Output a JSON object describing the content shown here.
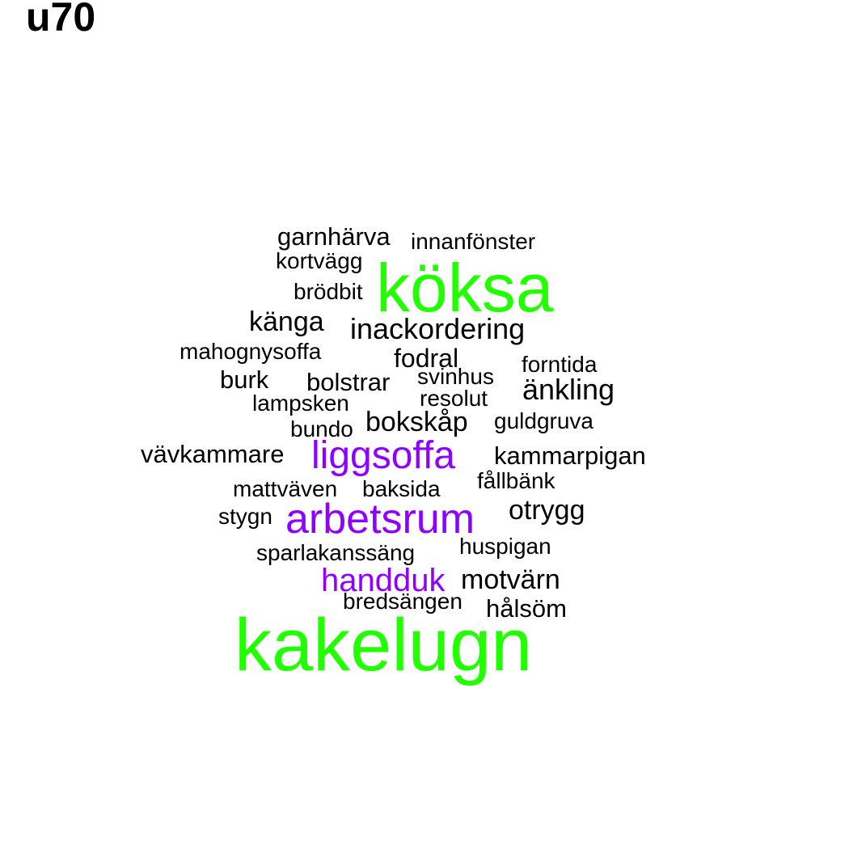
{
  "title": "u70",
  "colors": {
    "large": "#22ff00",
    "medium": "#8f00ff",
    "small": "#000000"
  },
  "words": [
    {
      "text": "garnhärva",
      "tier": "small"
    },
    {
      "text": "innanfönster",
      "tier": "small"
    },
    {
      "text": "kortvägg",
      "tier": "small"
    },
    {
      "text": "köksa",
      "tier": "large"
    },
    {
      "text": "brödbit",
      "tier": "small"
    },
    {
      "text": "känga",
      "tier": "small"
    },
    {
      "text": "inackordering",
      "tier": "small"
    },
    {
      "text": "mahognysoffa",
      "tier": "small"
    },
    {
      "text": "fodral",
      "tier": "small"
    },
    {
      "text": "forntida",
      "tier": "small"
    },
    {
      "text": "burk",
      "tier": "small"
    },
    {
      "text": "bolstrar",
      "tier": "small"
    },
    {
      "text": "svinhus",
      "tier": "small"
    },
    {
      "text": "änkling",
      "tier": "small"
    },
    {
      "text": "lampsken",
      "tier": "small"
    },
    {
      "text": "resolut",
      "tier": "small"
    },
    {
      "text": "bundo",
      "tier": "small"
    },
    {
      "text": "bokskåp",
      "tier": "small"
    },
    {
      "text": "guldgruva",
      "tier": "small"
    },
    {
      "text": "vävkammare",
      "tier": "small"
    },
    {
      "text": "liggsoffa",
      "tier": "medium"
    },
    {
      "text": "kammarpigan",
      "tier": "small"
    },
    {
      "text": "fållbänk",
      "tier": "small"
    },
    {
      "text": "mattväven",
      "tier": "small"
    },
    {
      "text": "baksida",
      "tier": "small"
    },
    {
      "text": "otrygg",
      "tier": "small"
    },
    {
      "text": "stygn",
      "tier": "small"
    },
    {
      "text": "arbetsrum",
      "tier": "medium"
    },
    {
      "text": "sparlakanssäng",
      "tier": "small"
    },
    {
      "text": "huspigan",
      "tier": "small"
    },
    {
      "text": "handduk",
      "tier": "medium"
    },
    {
      "text": "motvärn",
      "tier": "small"
    },
    {
      "text": "bredsängen",
      "tier": "small"
    },
    {
      "text": "hålsöm",
      "tier": "small"
    },
    {
      "text": "kakelugn",
      "tier": "large"
    }
  ]
}
